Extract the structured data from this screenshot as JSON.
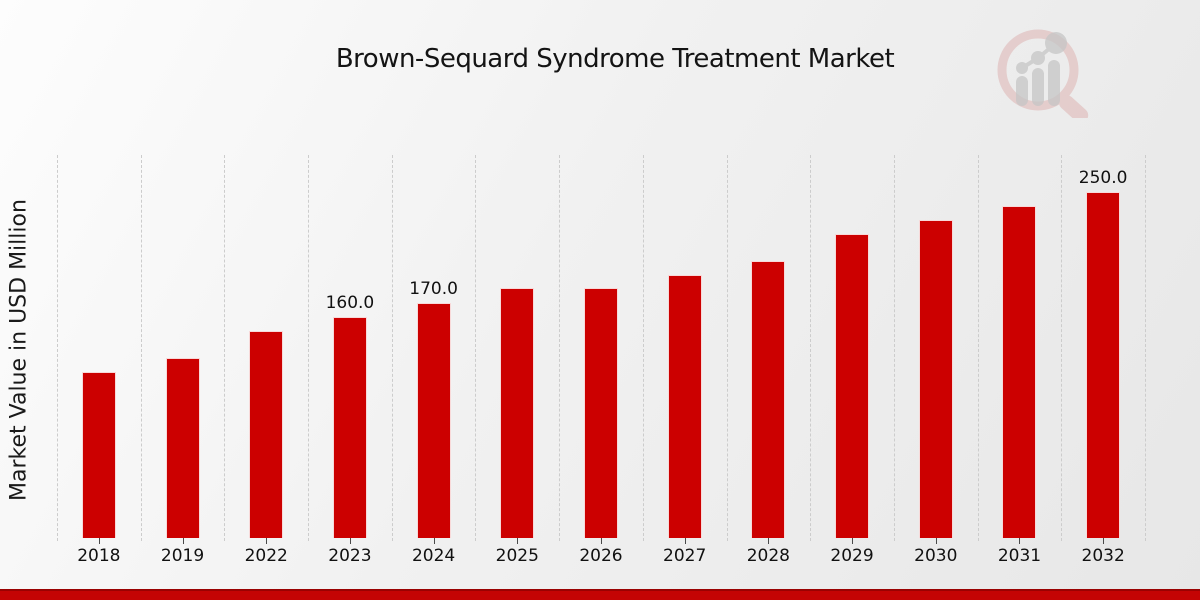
{
  "title": "Brown-Sequard Syndrome Treatment Market",
  "ylabel": "Market Value in USD Million",
  "chart_data": {
    "type": "bar",
    "title": "Brown-Sequard Syndrome Treatment Market",
    "xlabel": "",
    "ylabel": "Market Value in USD Million",
    "categories": [
      "2018",
      "2019",
      "2022",
      "2023",
      "2024",
      "2025",
      "2026",
      "2027",
      "2028",
      "2029",
      "2030",
      "2031",
      "2032"
    ],
    "values": [
      120,
      130,
      150,
      160,
      170,
      181,
      181,
      190,
      200,
      220,
      230,
      240,
      250
    ],
    "value_labels": [
      "",
      "",
      "",
      "160.0",
      "170.0",
      "",
      "",
      "",
      "",
      "",
      "",
      "",
      "250.0"
    ],
    "bar_color": "#cc0000",
    "ylim": [
      0,
      277
    ],
    "grid": "vertical-dashed",
    "legend": "none"
  },
  "footer": {
    "accent_color": "#c40404"
  },
  "logo_colors": {
    "ring": "#d9a3a1",
    "bars": "#bfbfbf"
  }
}
